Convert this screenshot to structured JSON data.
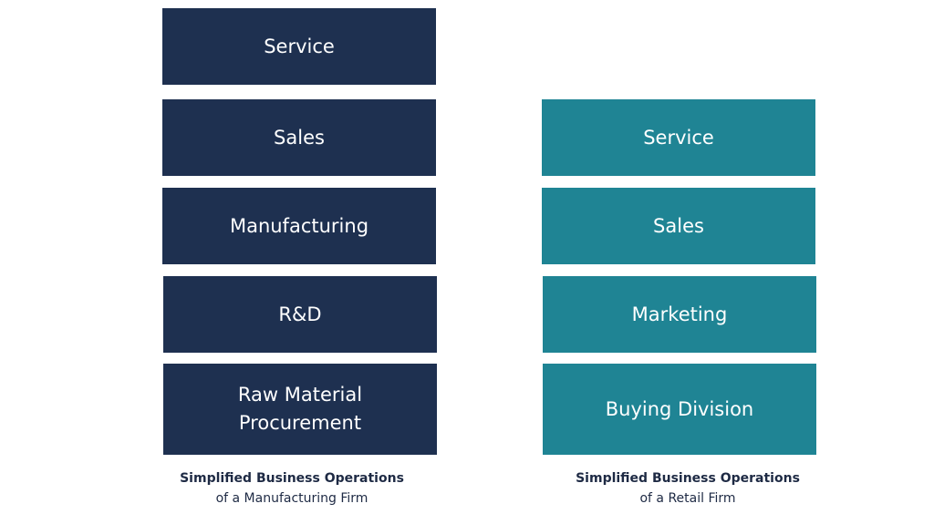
{
  "colors": {
    "manufacturing": "#1e3050",
    "retail": "#1f8494",
    "caption": "#1e2a44"
  },
  "manufacturing": {
    "boxes": [
      "Service",
      "Sales",
      "Manufacturing",
      "R&D",
      "Raw Material\nProcurement"
    ],
    "caption_title": "Simplified Business Operations",
    "caption_sub": "of a Manufacturing Firm"
  },
  "retail": {
    "boxes": [
      "Service",
      "Sales",
      "Marketing",
      "Buying Division"
    ],
    "caption_title": "Simplified Business Operations",
    "caption_sub": "of a Retail Firm"
  }
}
